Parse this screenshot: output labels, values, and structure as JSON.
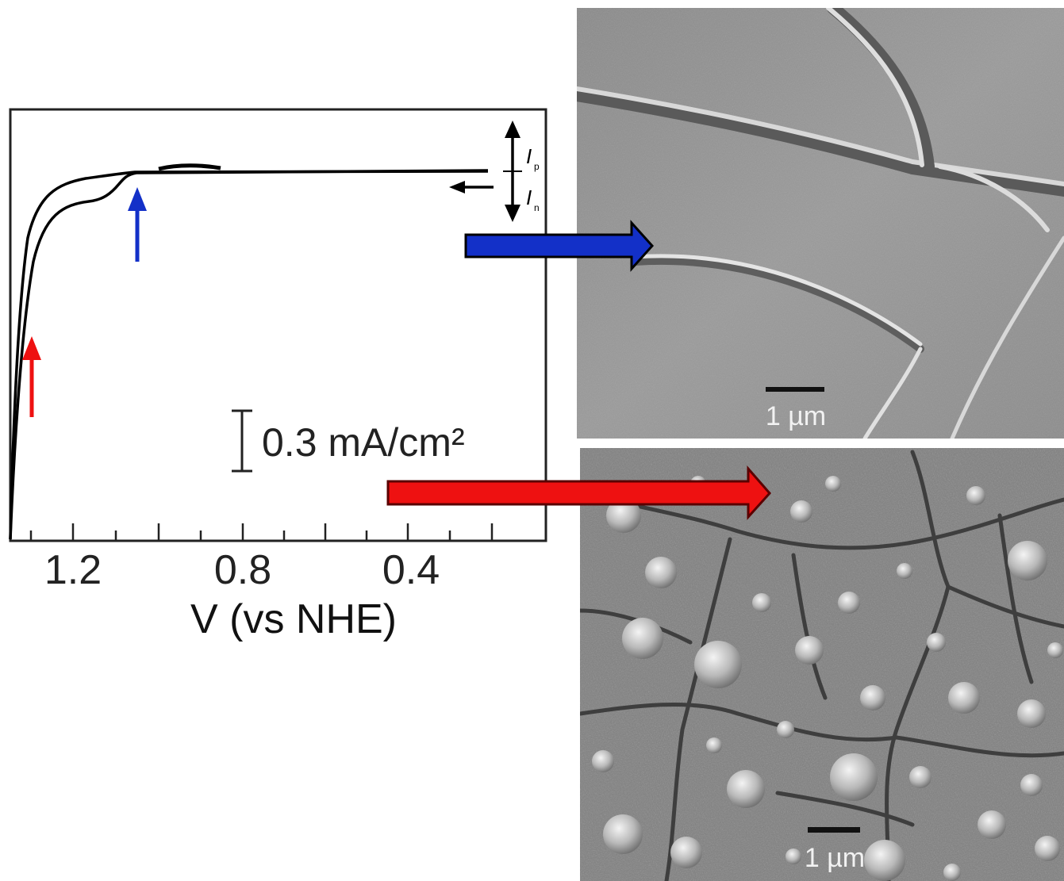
{
  "plot": {
    "x_ticks": [
      "1.2",
      "0.8",
      "0.4"
    ],
    "x_label": "V (vs NHE)",
    "current_scale": "0.3 mA/cm²",
    "current_labels": [
      "I",
      "I"
    ],
    "current_subscripts": [
      "p",
      "n"
    ]
  },
  "sem_top": {
    "scale_label": "1 µm"
  },
  "sem_bottom": {
    "scale_label": "1 µm"
  },
  "colors": {
    "blue_arrow": "#1330c8",
    "red_arrow": "#ee1111",
    "dark_red_outline": "#5a0000",
    "curve": "#000000"
  },
  "chart_data": {
    "type": "line",
    "title": "",
    "xlabel": "V (vs NHE)",
    "ylabel": "",
    "x_ticks": [
      1.2,
      0.8,
      0.4
    ],
    "xlim": [
      1.37,
      0.13
    ],
    "scale_bar": "0.3 mA/cm²",
    "series": [
      {
        "x": [
          1.37,
          1.35,
          1.33,
          1.3,
          1.26,
          1.22,
          1.18,
          1.14,
          1.1,
          1.0,
          0.8,
          0.6,
          0.4,
          0.2
        ],
        "y": [
          -2.4,
          -1.3,
          -0.6,
          -0.25,
          -0.07,
          -0.02,
          -0.01,
          0.0,
          0.0,
          0.0,
          0.0,
          0.0,
          0.0,
          0.0
        ]
      },
      {
        "x": [
          1.37,
          1.35,
          1.32,
          1.29,
          1.25,
          1.2,
          1.16,
          1.12,
          1.1,
          1.0,
          0.8,
          0.6,
          0.4,
          0.2
        ],
        "y": [
          -2.4,
          -1.6,
          -0.8,
          -0.4,
          -0.18,
          -0.11,
          -0.1,
          -0.04,
          0.0,
          0.0,
          0.0,
          0.0,
          0.0,
          0.0
        ]
      }
    ],
    "markers": [
      {
        "color": "red",
        "x": 1.32
      },
      {
        "color": "blue",
        "x": 1.1
      }
    ]
  }
}
